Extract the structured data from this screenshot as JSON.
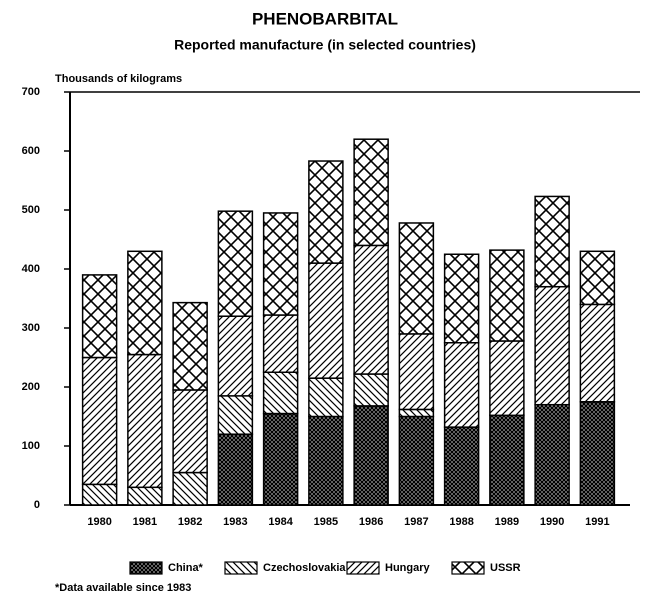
{
  "chart_data": {
    "type": "bar",
    "stacked": true,
    "title": "PHENOBARBITAL",
    "subtitle": "Reported manufacture (in selected countries)",
    "y_label": "Thousands of kilograms",
    "footnote": "*Data available since 1983",
    "categories": [
      "1980",
      "1981",
      "1982",
      "1983",
      "1984",
      "1985",
      "1986",
      "1987",
      "1988",
      "1989",
      "1990",
      "1991"
    ],
    "series": [
      {
        "name": "China*",
        "color": "#000000",
        "values": [
          0,
          0,
          0,
          120,
          155,
          150,
          168,
          150,
          132,
          152,
          170,
          175
        ]
      },
      {
        "name": "Czechoslovakia",
        "color": "#000000",
        "values": [
          35,
          30,
          55,
          65,
          70,
          65,
          54,
          12,
          0,
          0,
          0,
          0
        ]
      },
      {
        "name": "Hungary",
        "color": "#000000",
        "values": [
          215,
          225,
          140,
          135,
          97,
          195,
          218,
          128,
          143,
          126,
          200,
          165
        ]
      },
      {
        "name": "USSR",
        "color": "#000000",
        "values": [
          140,
          175,
          148,
          178,
          173,
          173,
          180,
          188,
          150,
          154,
          153,
          90
        ]
      }
    ],
    "ylim": [
      0,
      700
    ],
    "yticks": [
      0,
      100,
      200,
      300,
      400,
      500,
      600,
      700
    ]
  }
}
